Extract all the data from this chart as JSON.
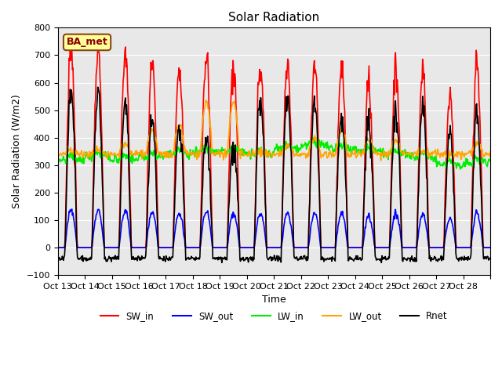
{
  "title": "Solar Radiation",
  "xlabel": "Time",
  "ylabel": "Solar Radiation (W/m2)",
  "ylim": [
    -100,
    800
  ],
  "background_color": "#e8e8e8",
  "grid_color": "white",
  "annotation_text": "BA_met",
  "annotation_box_color": "#ffff99",
  "annotation_border_color": "#8b4513",
  "x_tick_labels": [
    "Oct 13",
    "Oct 14",
    "Oct 15",
    "Oct 16",
    "Oct 17",
    "Oct 18",
    "Oct 19",
    "Oct 20",
    "Oct 21",
    "Oct 22",
    "Oct 23",
    "Oct 24",
    "Oct 25",
    "Oct 26",
    "Oct 27",
    "Oct 28",
    ""
  ],
  "num_days": 16,
  "sw_peaks": [
    735,
    700,
    705,
    660,
    665,
    700,
    660,
    665,
    665,
    660,
    670,
    595,
    665,
    645,
    545,
    670
  ],
  "lw_out_day_peaks": [
    350,
    360,
    380,
    430,
    450,
    530,
    530,
    350,
    370,
    400,
    430,
    390,
    390,
    350,
    340,
    380
  ],
  "lw_in_base": [
    320,
    330,
    320,
    330,
    340,
    350,
    350,
    340,
    360,
    370,
    360,
    350,
    340,
    330,
    300,
    310
  ],
  "series": {
    "SW_in": {
      "color": "red",
      "lw": 1.2
    },
    "SW_out": {
      "color": "blue",
      "lw": 1.2
    },
    "LW_in": {
      "color": "#00ee00",
      "lw": 1.2
    },
    "LW_out": {
      "color": "orange",
      "lw": 1.2
    },
    "Rnet": {
      "color": "black",
      "lw": 1.2
    }
  },
  "yticks": [
    -100,
    0,
    100,
    200,
    300,
    400,
    500,
    600,
    700,
    800
  ]
}
